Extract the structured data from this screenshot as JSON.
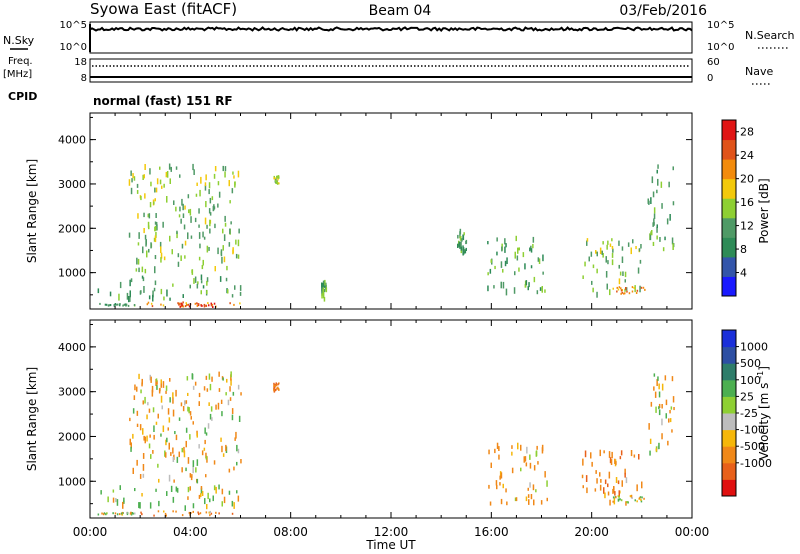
{
  "header": {
    "station": "Syowa East (fitACF)",
    "beam": "Beam 04",
    "date": "03/Feb/2016"
  },
  "strip_labels": {
    "nsky": "N.Sky",
    "nsearch": "N.Search",
    "freq": "Freq.",
    "freq_unit": "[MHz]",
    "nave": "Nave",
    "cpid": "CPID",
    "mode": "normal (fast) 151 RF"
  },
  "strip_ticks": {
    "noise_left": [
      "10^5",
      "10^0"
    ],
    "noise_right": [
      "10^5",
      "10^0"
    ],
    "freq_left": [
      "18",
      "8"
    ],
    "nave_right": [
      "60",
      "0"
    ]
  },
  "colors": {
    "power": [
      "#1a1aff",
      "#3355aa",
      "#2e8b57",
      "#4f9a66",
      "#8ecf33",
      "#f3c90b",
      "#f28b0c",
      "#e0531a",
      "#e01515"
    ],
    "velocity": [
      "#e01010",
      "#e8601a",
      "#f08818",
      "#f5b70a",
      "#bdbdbd",
      "#8ecf33",
      "#4caf50",
      "#2e7d6a",
      "#2d4fa3",
      "#1a2fd9"
    ]
  },
  "chart_data": [
    {
      "type": "heatmap",
      "name": "power",
      "x_range": [
        "00:00",
        "24:00"
      ],
      "ylim": [
        180,
        4600
      ],
      "yticks": [
        1000,
        2000,
        3000,
        4000
      ],
      "xticks": [
        "00:00",
        "04:00",
        "08:00",
        "12:00",
        "16:00",
        "20:00",
        "00:00"
      ],
      "ylabel": "Slant Range [km]",
      "colorbar_label": "Power [dB]",
      "colorbar_ticks": [
        "4",
        "8",
        "12",
        "16",
        "20",
        "24",
        "28"
      ],
      "colorbar_range": [
        0,
        30
      ],
      "clusters": [
        {
          "t": [
            0.3,
            1.8
          ],
          "r": [
            250,
            300
          ],
          "v": 10
        },
        {
          "t": [
            2.0,
            6.2
          ],
          "r": [
            230,
            330
          ],
          "v": 22
        },
        {
          "t": [
            3.4,
            5.0
          ],
          "r": [
            220,
            310
          ],
          "v": 27
        },
        {
          "t": [
            0.3,
            6.0
          ],
          "r": [
            400,
            900
          ],
          "v": 12
        },
        {
          "t": [
            1.5,
            6.0
          ],
          "r": [
            1000,
            3400
          ],
          "v": 14
        },
        {
          "t": [
            7.3,
            7.5
          ],
          "r": [
            3000,
            3200
          ],
          "v": 16
        },
        {
          "t": [
            9.2,
            9.4
          ],
          "r": [
            400,
            900
          ],
          "v": 12
        },
        {
          "t": [
            14.6,
            15.0
          ],
          "r": [
            1400,
            2000
          ],
          "v": 12
        },
        {
          "t": [
            15.8,
            18.2
          ],
          "r": [
            500,
            1800
          ],
          "v": 12
        },
        {
          "t": [
            19.6,
            22.0
          ],
          "r": [
            500,
            1800
          ],
          "v": 14
        },
        {
          "t": [
            20.8,
            22.1
          ],
          "r": [
            520,
            680
          ],
          "v": 22
        },
        {
          "t": [
            22.2,
            23.3
          ],
          "r": [
            1500,
            3400
          ],
          "v": 12
        }
      ],
      "xlabel": ""
    },
    {
      "type": "heatmap",
      "name": "velocity",
      "x_range": [
        "00:00",
        "24:00"
      ],
      "ylim": [
        180,
        4600
      ],
      "yticks": [
        1000,
        2000,
        3000,
        4000
      ],
      "xticks": [
        "00:00",
        "04:00",
        "08:00",
        "12:00",
        "16:00",
        "20:00",
        "00:00"
      ],
      "ylabel": "Slant Range [km]",
      "xlabel": "Time UT",
      "colorbar_label": "Velocity [m s^-1]",
      "colorbar_ticks": [
        "1000",
        "500",
        "100",
        "25",
        "-25",
        "-100",
        "-500",
        "-1000"
      ],
      "clusters": [
        {
          "t": [
            0.3,
            1.8
          ],
          "r": [
            250,
            300
          ],
          "v": -25
        },
        {
          "t": [
            2.0,
            6.2
          ],
          "r": [
            230,
            330
          ],
          "v": -300
        },
        {
          "t": [
            0.3,
            6.0
          ],
          "r": [
            400,
            900
          ],
          "v": 100
        },
        {
          "t": [
            1.5,
            6.0
          ],
          "r": [
            1000,
            3400
          ],
          "v": -100
        },
        {
          "t": [
            7.3,
            7.5
          ],
          "r": [
            3000,
            3200
          ],
          "v": -500
        },
        {
          "t": [
            15.8,
            18.2
          ],
          "r": [
            500,
            1800
          ],
          "v": -200
        },
        {
          "t": [
            19.6,
            22.0
          ],
          "r": [
            500,
            1800
          ],
          "v": -300
        },
        {
          "t": [
            20.8,
            22.1
          ],
          "r": [
            520,
            680
          ],
          "v": 100
        },
        {
          "t": [
            22.2,
            23.3
          ],
          "r": [
            1500,
            3400
          ],
          "v": -100
        }
      ]
    }
  ]
}
